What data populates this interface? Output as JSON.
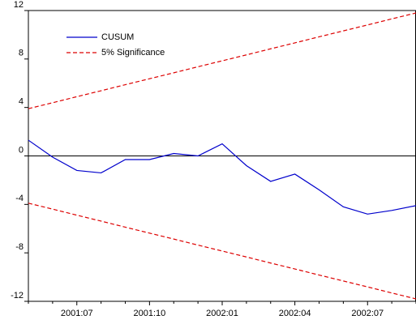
{
  "chart_data": {
    "type": "line",
    "categories": [
      null,
      null,
      "2001:07",
      null,
      null,
      "2001:10",
      null,
      null,
      "2002:01",
      null,
      null,
      "2002:04",
      null,
      null,
      "2002:07",
      null,
      null
    ],
    "series": [
      {
        "name": "CUSUM",
        "color": "#0000cc",
        "dash": "solid",
        "values": [
          1.3,
          -0.1,
          -1.2,
          -1.4,
          -0.3,
          -0.3,
          0.2,
          0.0,
          1.0,
          -0.8,
          -2.1,
          -1.5,
          -2.8,
          -4.2,
          -4.8,
          -4.5,
          -4.1
        ]
      },
      {
        "name": "5% Significance",
        "color": "#dd0000",
        "dash": "dashed",
        "values": [
          3.9,
          4.39,
          4.89,
          5.38,
          5.88,
          6.37,
          6.86,
          7.36,
          7.85,
          8.34,
          8.84,
          9.33,
          9.83,
          10.32,
          10.81,
          11.31,
          11.8
        ]
      },
      {
        "name": null,
        "color": "#dd0000",
        "dash": "dashed",
        "values": [
          -3.9,
          -4.39,
          -4.89,
          -5.38,
          -5.88,
          -6.37,
          -6.86,
          -7.36,
          -7.85,
          -8.34,
          -8.84,
          -9.33,
          -9.83,
          -10.32,
          -10.81,
          -11.31,
          -11.8
        ]
      }
    ],
    "ylim": [
      -12,
      12
    ],
    "yticks": [
      -12,
      -8,
      -4,
      0,
      4,
      8,
      12
    ],
    "legend": "upper left"
  }
}
